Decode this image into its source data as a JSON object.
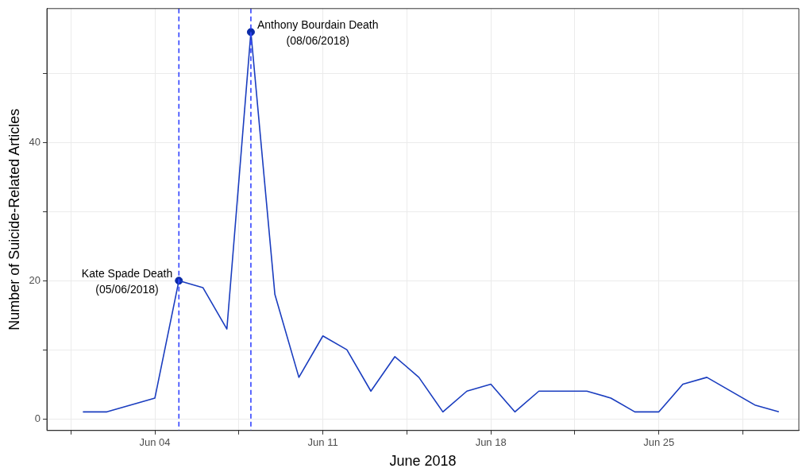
{
  "chart_data": {
    "type": "line",
    "xlabel": "June 2018",
    "ylabel": "Number of Suicide-Related Articles",
    "xlim": [
      "2018-05-30T12:00",
      "2018-06-30T20:00"
    ],
    "xticks": [
      {
        "value": "2018-06-04",
        "label": "Jun 04"
      },
      {
        "value": "2018-06-07T12:00",
        "label": null
      },
      {
        "value": "2018-06-11",
        "label": "Jun 11"
      },
      {
        "value": "2018-06-14T12:00",
        "label": null
      },
      {
        "value": "2018-06-18",
        "label": "Jun 18"
      },
      {
        "value": "2018-06-21T12:00",
        "label": null
      },
      {
        "value": "2018-06-25",
        "label": "Jun 25"
      },
      {
        "value": "2018-05-31T12:00",
        "label": null
      },
      {
        "value": "2018-06-28T12:00",
        "label": null
      }
    ],
    "ylim": [
      -1.7,
      59.4
    ],
    "yticks": [
      0,
      {
        "value": 10,
        "label": null
      },
      20,
      {
        "value": 30,
        "label": null
      },
      40,
      {
        "value": 50,
        "label": null
      }
    ],
    "grid": true,
    "legend": false,
    "marker": "none",
    "line_style": "solid",
    "series": [
      {
        "type": "line",
        "color": "#1a3dbf",
        "x": [
          "2018-06-01",
          "2018-06-02",
          "2018-06-04",
          "2018-06-05",
          "2018-06-06",
          "2018-06-07",
          "2018-06-08",
          "2018-06-09",
          "2018-06-10",
          "2018-06-11",
          "2018-06-12",
          "2018-06-13",
          "2018-06-14",
          "2018-06-15",
          "2018-06-16",
          "2018-06-17",
          "2018-06-18",
          "2018-06-19",
          "2018-06-20",
          "2018-06-21",
          "2018-06-22",
          "2018-06-23",
          "2018-06-24",
          "2018-06-25",
          "2018-06-26",
          "2018-06-27",
          "2018-06-29",
          "2018-06-30"
        ],
        "values": [
          1,
          1,
          3,
          20,
          19,
          13,
          56,
          18,
          6,
          12,
          10,
          4,
          9,
          6,
          1,
          4,
          5,
          1,
          4,
          4,
          4,
          3,
          1,
          1,
          5,
          6,
          2,
          1
        ]
      },
      {
        "type": "scatter",
        "color": "#0a2aa8",
        "marker": "circle",
        "x": [
          "2018-06-05",
          "2018-06-08"
        ],
        "values": [
          20,
          56
        ]
      }
    ],
    "ref_lines": [
      {
        "axis": "x",
        "value": "2018-06-05",
        "color": "#3344ff",
        "line_style": "dashed"
      },
      {
        "axis": "x",
        "value": "2018-06-08",
        "color": "#3344ff",
        "line_style": "dashed"
      }
    ],
    "annotations": [
      {
        "text": "Kate Spade Death\n(05/06/2018)",
        "x": "2018-06-05",
        "y": 20
      },
      {
        "text": "Anthony Bourdain Death\n(08/06/2018)",
        "x": "2018-06-08",
        "y": 56
      }
    ]
  }
}
